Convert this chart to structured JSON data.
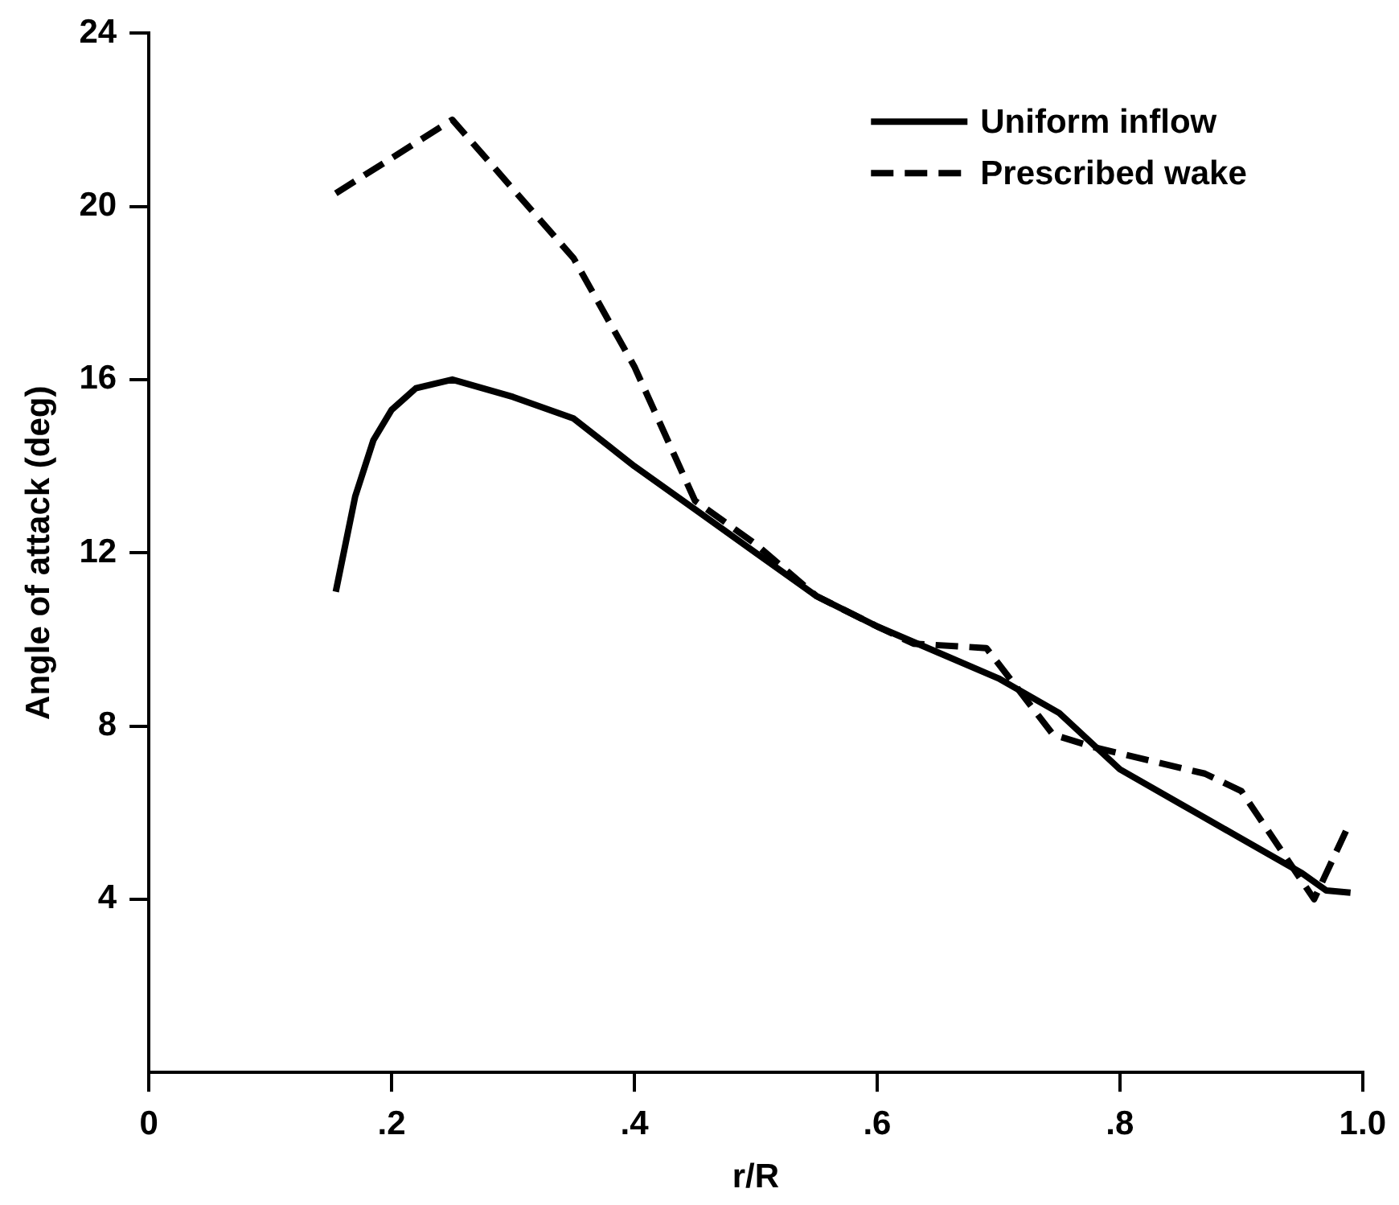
{
  "chart_data": {
    "type": "line",
    "xlabel": "r/R",
    "ylabel": "Angle of attack (deg)",
    "xlim": [
      0,
      1
    ],
    "xticks": [
      {
        "value": 0,
        "label": "0"
      },
      {
        "value": 0.2,
        "label": ".2"
      },
      {
        "value": 0.4,
        "label": ".4"
      },
      {
        "value": 0.6,
        "label": ".6"
      },
      {
        "value": 0.8,
        "label": ".8"
      },
      {
        "value": 1,
        "label": "1.0"
      }
    ],
    "ylim": [
      0,
      24
    ],
    "yticks": [
      4,
      8,
      12,
      16,
      20,
      24
    ],
    "grid": false,
    "legend": "top right",
    "marker": "none",
    "series": [
      {
        "name": "Uniform inflow",
        "color": "#000000",
        "line_style": "solid",
        "x": [
          0.154,
          0.17,
          0.185,
          0.2,
          0.22,
          0.25,
          0.3,
          0.35,
          0.4,
          0.45,
          0.5,
          0.55,
          0.6,
          0.65,
          0.7,
          0.75,
          0.8,
          0.85,
          0.9,
          0.95,
          0.97,
          0.99
        ],
        "values": [
          11.1,
          13.3,
          14.6,
          15.3,
          15.8,
          16.0,
          15.6,
          15.1,
          14.0,
          13.0,
          12.0,
          11.0,
          10.3,
          9.7,
          9.1,
          8.3,
          7.0,
          6.2,
          5.4,
          4.6,
          4.2,
          4.15
        ]
      },
      {
        "name": "Prescribed wake",
        "color": "#000000",
        "line_style": "dashed",
        "x": [
          0.154,
          0.25,
          0.35,
          0.4,
          0.45,
          0.5,
          0.55,
          0.6,
          0.63,
          0.69,
          0.745,
          0.78,
          0.87,
          0.9,
          0.96,
          0.99
        ],
        "values": [
          20.3,
          22.0,
          18.8,
          16.3,
          13.2,
          12.2,
          11.0,
          10.3,
          9.9,
          9.8,
          7.8,
          7.5,
          6.9,
          6.5,
          4.0,
          5.8
        ]
      }
    ]
  }
}
